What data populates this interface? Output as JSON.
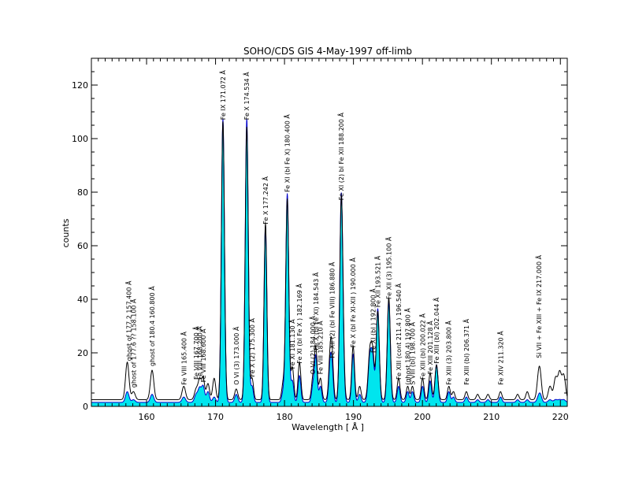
{
  "chart_data": {
    "type": "line",
    "title": "SOHO/CDS GIS  4-May-1997 off-limb",
    "xlabel": "Wavelength [ Å ]",
    "ylabel": "counts",
    "xlim": [
      152,
      221
    ],
    "ylim": [
      0,
      130
    ],
    "x_ticks": [
      160,
      170,
      180,
      190,
      200,
      210,
      220
    ],
    "y_ticks": [
      0,
      20,
      40,
      60,
      80,
      100,
      120
    ],
    "grid": false,
    "colors": {
      "observed": "#000000",
      "fit": "#0000cc",
      "fill": "#00e5ee"
    },
    "baseline": {
      "observed": 2.5,
      "fit": 1.5
    },
    "lines": [
      {
        "x": 157.2,
        "obs": 14,
        "fit": 4,
        "w": 0.25
      },
      {
        "x": 158.1,
        "obs": 3,
        "fit": 1,
        "w": 0.25
      },
      {
        "x": 160.8,
        "obs": 11,
        "fit": 3,
        "w": 0.25
      },
      {
        "x": 165.4,
        "obs": 5,
        "fit": 2,
        "w": 0.25
      },
      {
        "x": 167.2,
        "obs": 4,
        "fit": 3,
        "w": 0.25
      },
      {
        "x": 167.7,
        "obs": 7,
        "fit": 5,
        "w": 0.22
      },
      {
        "x": 168.2,
        "obs": 8,
        "fit": 6,
        "w": 0.22
      },
      {
        "x": 168.9,
        "obs": 6,
        "fit": 4,
        "w": 0.22
      },
      {
        "x": 169.8,
        "obs": 8,
        "fit": 2,
        "w": 0.22
      },
      {
        "x": 171.07,
        "obs": 104,
        "fit": 106,
        "w": 0.22
      },
      {
        "x": 173.0,
        "obs": 4,
        "fit": 3,
        "w": 0.22
      },
      {
        "x": 174.53,
        "obs": 102,
        "fit": 106,
        "w": 0.22
      },
      {
        "x": 175.3,
        "obs": 8,
        "fit": 6,
        "w": 0.2
      },
      {
        "x": 177.24,
        "obs": 66,
        "fit": 66,
        "w": 0.2
      },
      {
        "x": 179.8,
        "obs": 6,
        "fit": 4,
        "w": 0.2
      },
      {
        "x": 180.4,
        "obs": 75,
        "fit": 78,
        "w": 0.22
      },
      {
        "x": 181.14,
        "obs": 12,
        "fit": 8,
        "w": 0.2
      },
      {
        "x": 182.17,
        "obs": 14,
        "fit": 10,
        "w": 0.2
      },
      {
        "x": 184.12,
        "obs": 8,
        "fit": 6,
        "w": 0.2
      },
      {
        "x": 184.54,
        "obs": 19,
        "fit": 17,
        "w": 0.2
      },
      {
        "x": 185.21,
        "obs": 8,
        "fit": 6,
        "w": 0.2
      },
      {
        "x": 186.6,
        "obs": 14,
        "fit": 12,
        "w": 0.2
      },
      {
        "x": 186.88,
        "obs": 16,
        "fit": 12,
        "w": 0.2
      },
      {
        "x": 188.23,
        "obs": 72,
        "fit": 75,
        "w": 0.22
      },
      {
        "x": 188.5,
        "obs": 10,
        "fit": 8,
        "w": 0.2
      },
      {
        "x": 189.95,
        "obs": 20,
        "fit": 18,
        "w": 0.2
      },
      {
        "x": 190.9,
        "obs": 5,
        "fit": 3,
        "w": 0.2
      },
      {
        "x": 192.39,
        "obs": 18,
        "fit": 17,
        "w": 0.25
      },
      {
        "x": 192.82,
        "obs": 15,
        "fit": 14,
        "w": 0.22
      },
      {
        "x": 193.52,
        "obs": 33,
        "fit": 35,
        "w": 0.22
      },
      {
        "x": 195.12,
        "obs": 38,
        "fit": 38,
        "w": 0.22
      },
      {
        "x": 196.54,
        "obs": 8,
        "fit": 6,
        "w": 0.2
      },
      {
        "x": 197.86,
        "obs": 5,
        "fit": 4,
        "w": 0.2
      },
      {
        "x": 198.55,
        "obs": 5,
        "fit": 4,
        "w": 0.2
      },
      {
        "x": 200.02,
        "obs": 8,
        "fit": 6,
        "w": 0.2
      },
      {
        "x": 201.12,
        "obs": 10,
        "fit": 8,
        "w": 0.2
      },
      {
        "x": 202.04,
        "obs": 13,
        "fit": 14,
        "w": 0.22
      },
      {
        "x": 203.83,
        "obs": 5,
        "fit": 4,
        "w": 0.2
      },
      {
        "x": 204.5,
        "obs": 3,
        "fit": 2,
        "w": 0.2
      },
      {
        "x": 206.37,
        "obs": 3,
        "fit": 2,
        "w": 0.2
      },
      {
        "x": 208.0,
        "obs": 2,
        "fit": 1,
        "w": 0.2
      },
      {
        "x": 209.5,
        "obs": 2,
        "fit": 1,
        "w": 0.2
      },
      {
        "x": 211.32,
        "obs": 3,
        "fit": 2,
        "w": 0.2
      },
      {
        "x": 213.8,
        "obs": 2,
        "fit": 1,
        "w": 0.2
      },
      {
        "x": 215.2,
        "obs": 3,
        "fit": 1,
        "w": 0.2
      },
      {
        "x": 216.87,
        "obs": 9,
        "fit": 2,
        "w": 0.25
      },
      {
        "x": 217.1,
        "obs": 5,
        "fit": 2,
        "w": 0.22
      },
      {
        "x": 218.5,
        "obs": 5,
        "fit": 1,
        "w": 0.25
      },
      {
        "x": 219.3,
        "obs": 8,
        "fit": 1,
        "w": 0.25
      },
      {
        "x": 219.9,
        "obs": 10,
        "fit": 1,
        "w": 0.25
      },
      {
        "x": 220.5,
        "obs": 9,
        "fit": 1,
        "w": 0.25
      }
    ],
    "annotations": [
      {
        "text": "ghost of 177.2 157.400 Å",
        "x": 157.4,
        "y": 17
      },
      {
        "text": "ghost of 177.6 ?? 158.100 Å",
        "x": 158.1,
        "y": 7
      },
      {
        "text": "ghost of 180.4 160.800 Å",
        "x": 160.8,
        "y": 15
      },
      {
        "text": "Fe VIII 165.400 Å",
        "x": 165.4,
        "y": 8
      },
      {
        "text": "Fe VIII 167.700 Å",
        "x": 167.2,
        "y": 10
      },
      {
        "text": "Fe VIII 168.200 Å",
        "x": 167.7,
        "y": 10
      },
      {
        "text": "Fe VIII 168.600 Å",
        "x": 168.2,
        "y": 9
      },
      {
        "text": "Fe IX 171.072 Å",
        "x": 171.07,
        "y": 107
      },
      {
        "text": "O VI (3) 173.000 Å",
        "x": 173.0,
        "y": 8
      },
      {
        "text": "Fe X 174.534 Å",
        "x": 174.53,
        "y": 107
      },
      {
        "text": "Fe X (2) 175.300 Å",
        "x": 175.3,
        "y": 11
      },
      {
        "text": "Fe X 177.242 Å",
        "x": 177.24,
        "y": 68
      },
      {
        "text": "Fe XI (bl Fe X) 180.400 Å",
        "x": 180.4,
        "y": 80
      },
      {
        "text": "Fe XI 181.130 Å",
        "x": 181.14,
        "y": 14
      },
      {
        "text": "Fe XI (bl Fe X ) 182.169 Å",
        "x": 182.17,
        "y": 16
      },
      {
        "text": "O VI (2) 184.000 Å",
        "x": 184.12,
        "y": 12
      },
      {
        "text": "Fe X (bl Fe XI) 184.543 Å",
        "x": 184.54,
        "y": 21
      },
      {
        "text": "Fe VIII 185.210 Å",
        "x": 185.21,
        "y": 12
      },
      {
        "text": "Fe XII (2) (bl Fe VIII) 186.880 Å",
        "x": 186.88,
        "y": 18
      },
      {
        "text": "Fe XI (2)  bl Fe XII 188.200 Å",
        "x": 188.23,
        "y": 77
      },
      {
        "text": "Fe X (bl Fe XI-XII ) 190.000 Å",
        "x": 189.95,
        "y": 22
      },
      {
        "text": "Fe XI (bl ) 192.800 Å",
        "x": 192.82,
        "y": 20
      },
      {
        "text": "Fe XII 193.521 Å",
        "x": 193.52,
        "y": 37
      },
      {
        "text": "Fe XII (3) 195.100 Å",
        "x": 195.12,
        "y": 40
      },
      {
        "text": "Fe XIII (cont 211.4 ) 196.540 Å",
        "x": 196.54,
        "y": 10
      },
      {
        "text": "(ghost 180.4) 197.800 Å",
        "x": 197.86,
        "y": 8
      },
      {
        "text": "S VIII (bl) 198.700 Å",
        "x": 198.55,
        "y": 8
      },
      {
        "text": "Fe XIII (bl) 200.022 Å",
        "x": 200.02,
        "y": 10
      },
      {
        "text": "Fe XIII 201.128 Å",
        "x": 201.12,
        "y": 12
      },
      {
        "text": "Fe XIII (bl) 202.044 Å",
        "x": 202.04,
        "y": 16
      },
      {
        "text": "Fe XIII (3) 203.800 Å",
        "x": 203.83,
        "y": 8
      },
      {
        "text": "Fe XIII (bl) 206.371 Å",
        "x": 206.37,
        "y": 8
      },
      {
        "text": "Fe XIV 211.320 Å",
        "x": 211.32,
        "y": 8
      },
      {
        "text": "Si VII + Fe XIII + Fe IX 217.000 Å",
        "x": 216.87,
        "y": 18
      }
    ]
  }
}
